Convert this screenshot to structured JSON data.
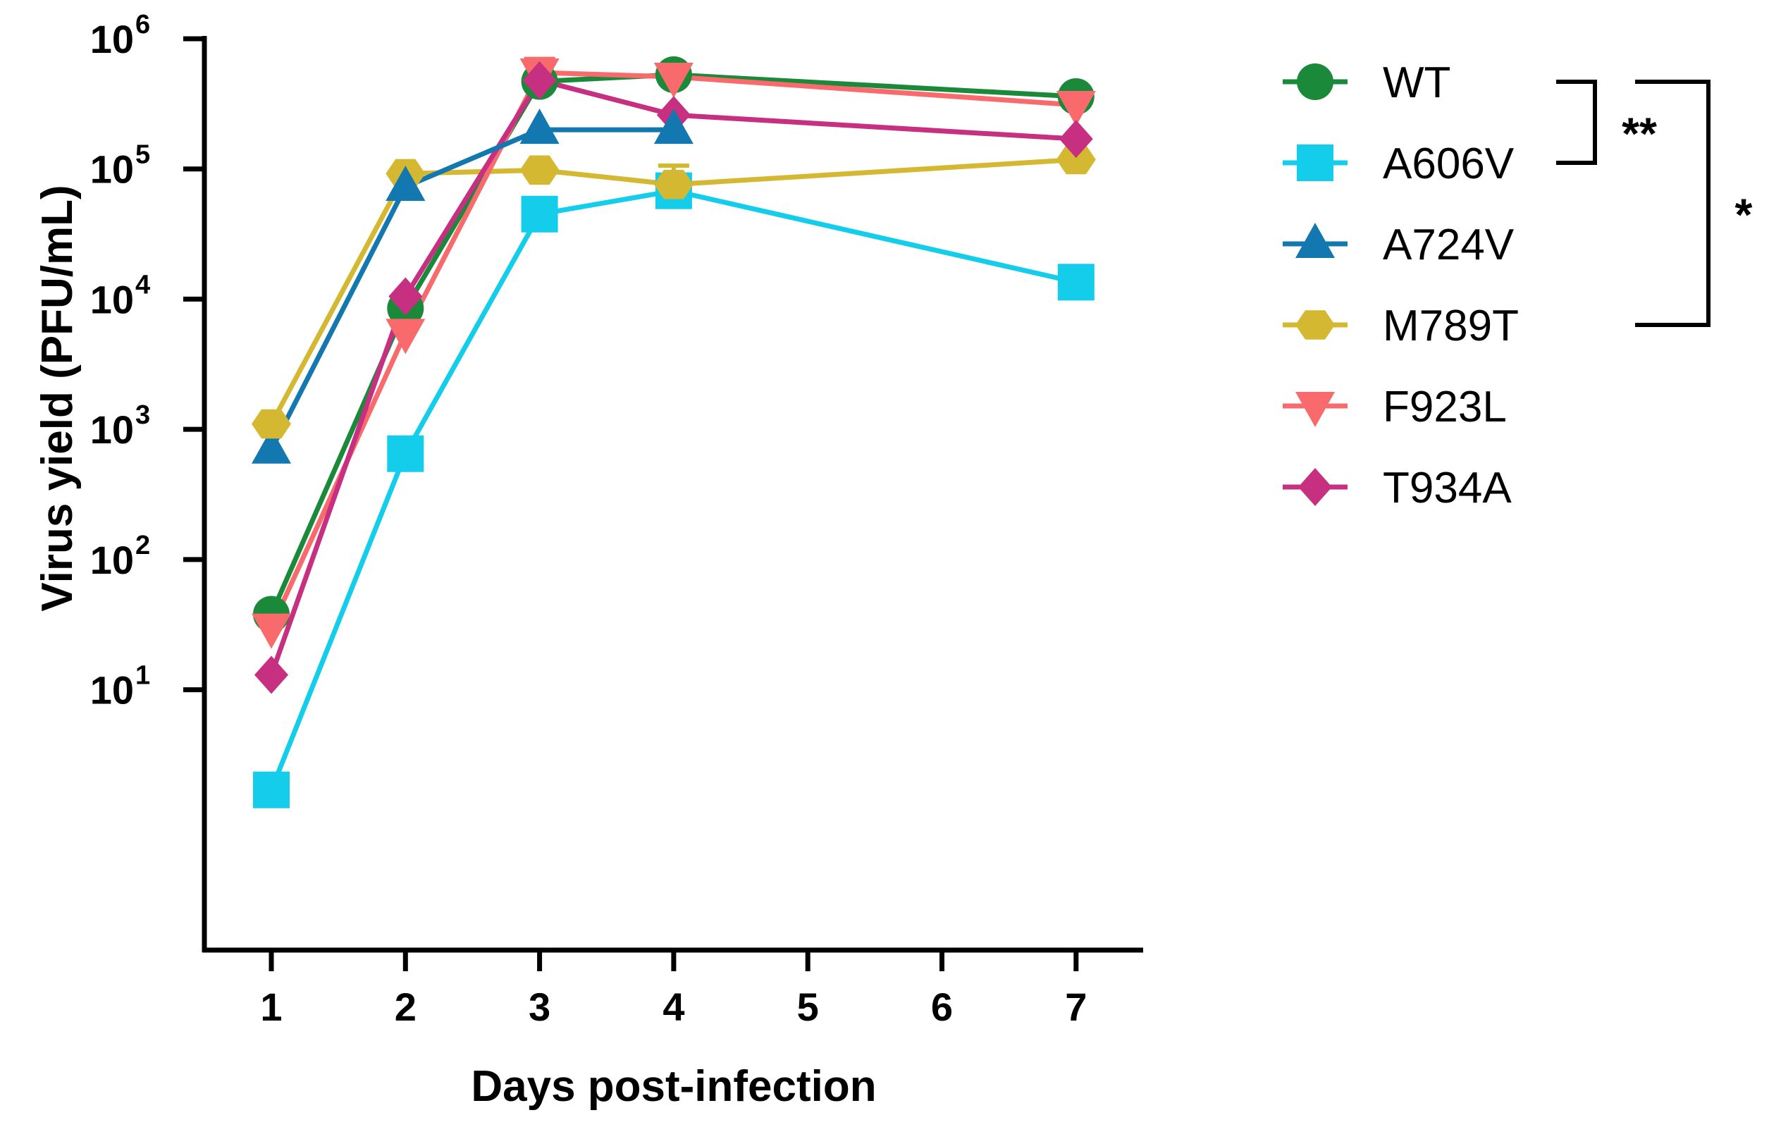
{
  "chart_data": {
    "type": "line",
    "xlabel": "Days post-infection",
    "ylabel": "Virus yield (PFU/mL)",
    "yscale": "log",
    "xlim": [
      0.5,
      7.5
    ],
    "ylim": [
      0.1,
      1000000
    ],
    "xticks": [
      1,
      2,
      3,
      4,
      5,
      6,
      7
    ],
    "yticks": [
      {
        "value": 10,
        "base": "10",
        "exp": "1"
      },
      {
        "value": 100,
        "base": "10",
        "exp": "2"
      },
      {
        "value": 1000,
        "base": "10",
        "exp": "3"
      },
      {
        "value": 10000,
        "base": "10",
        "exp": "4"
      },
      {
        "value": 100000,
        "base": "10",
        "exp": "5"
      },
      {
        "value": 1000000,
        "base": "10",
        "exp": "6"
      }
    ],
    "series": [
      {
        "name": "WT",
        "color": "#1a8a3a",
        "marker": "circle",
        "x": [
          1,
          2,
          3,
          4,
          7
        ],
        "y": [
          38,
          8500,
          470000,
          530000,
          360000
        ],
        "err": [
          0,
          0,
          0,
          0,
          0
        ]
      },
      {
        "name": "A606V",
        "color": "#14cdeb",
        "marker": "square",
        "x": [
          1,
          2,
          3,
          4,
          7
        ],
        "y": [
          1.7,
          650,
          45000,
          68000,
          13500
        ],
        "err": [
          0,
          0,
          12000,
          0,
          0
        ]
      },
      {
        "name": "A724V",
        "color": "#1478b0",
        "marker": "triangle-up",
        "x": [
          1,
          2
        ],
        "y": [
          700,
          73000
        ],
        "err": [
          400,
          0
        ]
      },
      {
        "name": "M789T",
        "color": "#d4b832",
        "marker": "hexagon",
        "x": [
          1,
          2,
          3,
          4,
          7
        ],
        "y": [
          1100,
          92000,
          98000,
          76000,
          118000
        ],
        "err": [
          0,
          0,
          0,
          30000,
          0
        ]
      },
      {
        "name": "F923L",
        "color": "#f86a6c",
        "marker": "triangle-down",
        "x": [
          1,
          2,
          3,
          4,
          7
        ],
        "y": [
          30,
          5500,
          550000,
          510000,
          310000
        ],
        "err": [
          0,
          0,
          150000,
          0,
          0
        ]
      },
      {
        "name": "T934A",
        "color": "#c72f80",
        "marker": "diamond",
        "x": [
          1,
          2,
          3,
          4,
          7
        ],
        "y": [
          13,
          10500,
          480000,
          260000,
          170000
        ],
        "err": [
          0,
          0,
          0,
          0,
          0
        ]
      }
    ],
    "extra_segments": [
      {
        "name": "A724V",
        "color": "#1478b0",
        "marker": "triangle-up",
        "x": [
          2,
          3,
          4
        ],
        "y": [
          73000,
          200000,
          200000
        ]
      }
    ],
    "significance": [
      {
        "label": "**",
        "from": "WT",
        "to": "A606V"
      },
      {
        "label": "*",
        "from": "WT",
        "to": "M789T"
      }
    ],
    "legend": [
      "WT",
      "A606V",
      "A724V",
      "M789T",
      "F923L",
      "T934A"
    ],
    "legend_position": "right"
  }
}
